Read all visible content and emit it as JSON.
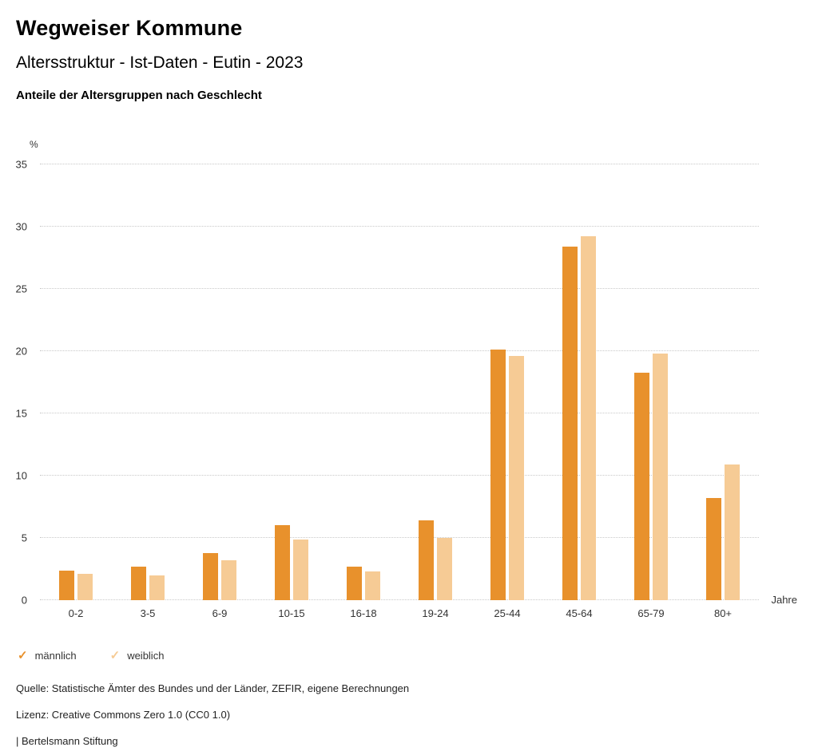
{
  "header": {
    "title": "Wegweiser Kommune",
    "subtitle": "Altersstruktur - Ist-Daten - Eutin - 2023",
    "caption": "Anteile der Altersgruppen nach Geschlecht"
  },
  "chart_data": {
    "type": "bar",
    "title": "Anteile der Altersgruppen nach Geschlecht",
    "categories": [
      "0-2",
      "3-5",
      "6-9",
      "10-15",
      "16-18",
      "19-24",
      "25-44",
      "45-64",
      "65-79",
      "80+"
    ],
    "series": [
      {
        "name": "männlich",
        "color": "#E8912C",
        "values": [
          2.4,
          2.7,
          3.8,
          6.0,
          2.7,
          6.4,
          20.1,
          28.4,
          18.3,
          8.2
        ]
      },
      {
        "name": "weiblich",
        "color": "#F6CB95",
        "values": [
          2.1,
          2.0,
          3.2,
          4.9,
          2.3,
          5.0,
          19.6,
          29.2,
          19.8,
          10.9
        ]
      }
    ],
    "y_unit": "%",
    "x_unit": "Jahre",
    "ylim": [
      0,
      35
    ],
    "yticks": [
      0,
      5,
      10,
      15,
      20,
      25,
      30,
      35
    ],
    "grid": true,
    "legend_position": "bottom-left"
  },
  "legend": {
    "items": [
      {
        "label": "männlich",
        "color": "#E8912C",
        "marker": "check"
      },
      {
        "label": "weiblich",
        "color": "#F6CB95",
        "marker": "check"
      }
    ]
  },
  "footer": {
    "source": "Quelle: Statistische Ämter des Bundes und der Länder, ZEFIR, eigene Berechnungen",
    "license": "Lizenz: Creative Commons Zero 1.0 (CC0 1.0)",
    "brand": "| Bertelsmann Stiftung"
  }
}
